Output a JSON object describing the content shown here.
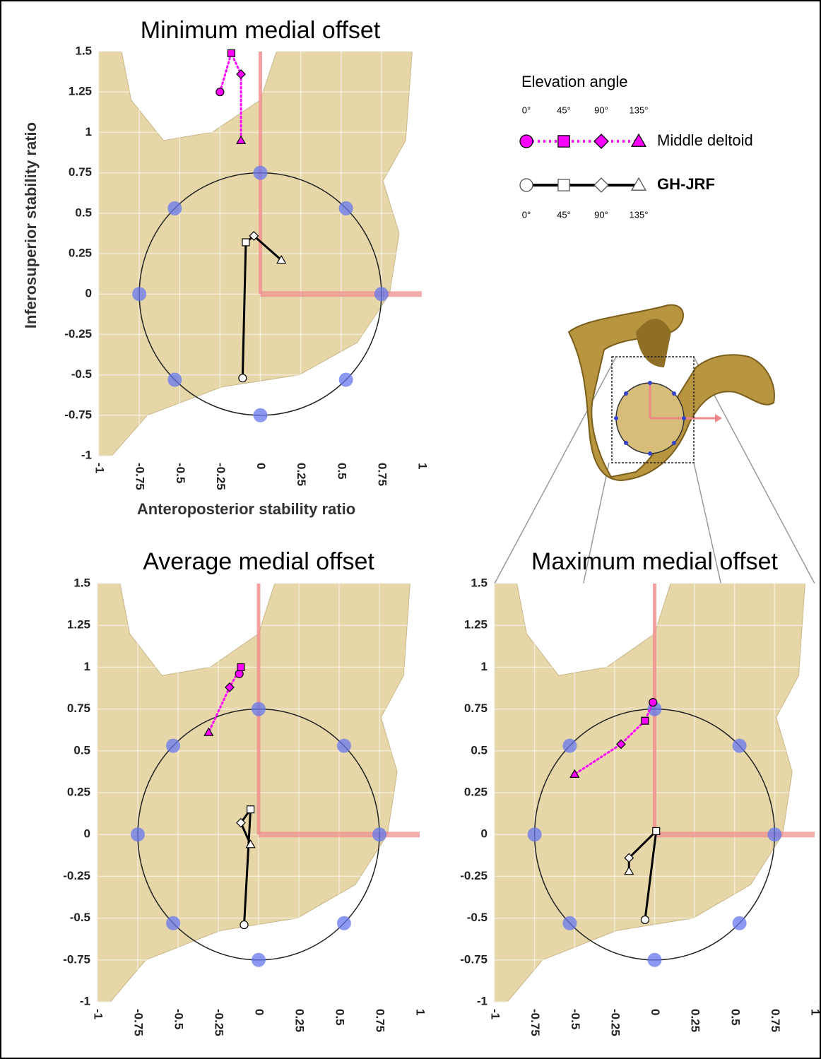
{
  "chart_data": [
    {
      "type": "line",
      "title": "Minimum medial offset",
      "x_label": "Anteroposterior stability ratio",
      "y_label": "Inferosuperior stability ratio",
      "xlim": [
        -1,
        1
      ],
      "ylim": [
        -1,
        1.5
      ],
      "xticks": [
        -1,
        -0.75,
        -0.5,
        -0.25,
        0,
        0.25,
        0.5,
        0.75,
        1
      ],
      "yticks": [
        -1,
        -0.75,
        -0.5,
        -0.25,
        0,
        0.25,
        0.5,
        0.75,
        1,
        1.25,
        1.5
      ],
      "grid": true,
      "boundary_radius": 0.75,
      "series": [
        {
          "name": "Middle deltoid",
          "color": "#ff00ff",
          "marker_fill": "#ff00ff",
          "line_style": "dotted",
          "x": [
            -0.25,
            -0.18,
            -0.12,
            -0.12
          ],
          "values": [
            1.25,
            1.49,
            1.36,
            0.95
          ]
        },
        {
          "name": "GH-JRF",
          "color": "#000000",
          "marker_fill": "#ffffff",
          "line_style": "solid",
          "x": [
            -0.11,
            -0.09,
            -0.04,
            0.13
          ],
          "values": [
            -0.52,
            0.32,
            0.36,
            0.21
          ]
        }
      ]
    },
    {
      "type": "line",
      "title": "Average medial offset",
      "xlim": [
        -1,
        1
      ],
      "ylim": [
        -1,
        1.5
      ],
      "xticks": [
        -1,
        -0.75,
        -0.5,
        -0.25,
        0,
        0.25,
        0.5,
        0.75,
        1
      ],
      "yticks": [
        -1,
        -0.75,
        -0.5,
        -0.25,
        0,
        0.25,
        0.5,
        0.75,
        1,
        1.25,
        1.5
      ],
      "grid": true,
      "boundary_radius": 0.75,
      "series": [
        {
          "color": "#ff00ff",
          "marker_fill": "#ff00ff",
          "line_style": "dotted",
          "x": [
            -0.12,
            -0.11,
            -0.18,
            -0.31
          ],
          "values": [
            0.96,
            1.0,
            0.88,
            0.61
          ]
        },
        {
          "color": "#000000",
          "marker_fill": "#ffffff",
          "line_style": "solid",
          "x": [
            -0.09,
            -0.05,
            -0.11,
            -0.05
          ],
          "values": [
            -0.54,
            0.15,
            0.07,
            -0.06
          ]
        }
      ]
    },
    {
      "type": "line",
      "title": "Maximum medial offset",
      "xlim": [
        -1,
        1
      ],
      "ylim": [
        -1,
        1.5
      ],
      "xticks": [
        -1,
        -0.75,
        -0.5,
        -0.25,
        0,
        0.25,
        0.5,
        0.75,
        1
      ],
      "yticks": [
        -1,
        -0.75,
        -0.5,
        -0.25,
        0,
        0.25,
        0.5,
        0.75,
        1,
        1.25,
        1.5
      ],
      "grid": true,
      "boundary_radius": 0.75,
      "series": [
        {
          "color": "#ff00ff",
          "marker_fill": "#ff00ff",
          "line_style": "dotted",
          "x": [
            -0.01,
            -0.06,
            -0.21,
            -0.5
          ],
          "values": [
            0.79,
            0.68,
            0.54,
            0.36
          ]
        },
        {
          "color": "#000000",
          "marker_fill": "#ffffff",
          "line_style": "solid",
          "x": [
            -0.06,
            0.01,
            -0.16,
            -0.16
          ],
          "values": [
            -0.51,
            0.02,
            -0.14,
            -0.22
          ]
        }
      ]
    }
  ],
  "legend": {
    "title": "Elevation angle",
    "angles": [
      "0°",
      "45°",
      "90°",
      "135°"
    ],
    "markers": [
      "circle",
      "square",
      "diamond",
      "triangle"
    ]
  }
}
